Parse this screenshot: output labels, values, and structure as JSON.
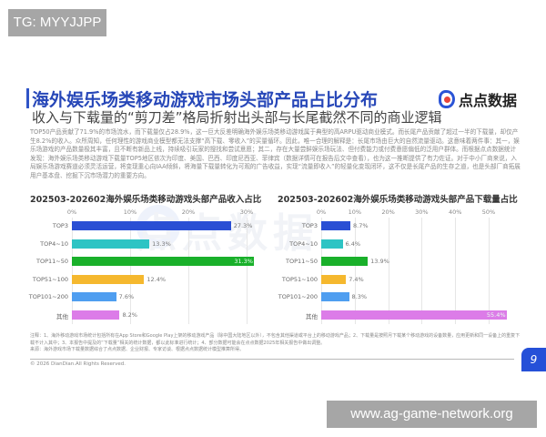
{
  "watermarks": {
    "top_left": "TG: MYYJJPP",
    "bottom_right": "www.ag-game-network.org",
    "background": "点点数据"
  },
  "header": {
    "title": "海外娱乐场类移动游戏市场头部产品占比分布",
    "subtitle": "收入与下载量的“剪刀差”格局折射出头部与长尾截然不同的商业逻辑",
    "logo_text": "点点数据",
    "logo_icon": "diandian-logo-icon"
  },
  "body_text": "TOP50产品贡献了71.9%的市场流水，而下载量仅占28.9%，这一巨大反差明确海外娱乐场类移动游戏属于典型的高ARPU驱动商业模式。而长尾产品贡献了超过一半的下载量，却仅产生8.2%的收入。众所周知，任何理性的游戏商业模型都无法支撑“高下载、零收入”的买量循环。因此，唯一合理的解释是：长尾市场由巨大的自然流量驱动。这意味着两件事：其一，娱乐场游戏的产品数量极其丰富，且不断有新品上线，持续吸引玩家的搜找和尝试意愿；其二，存在大量尝鲜娱乐场玩法、但付费能力或付费意愿偏低的泛用户群体。而根据点点数据统计发现：海外娱乐场类移动游戏下载量TOP5地区依次为印度、美国、巴西、印度尼西亚、菲律宾（数据详情可在报告后文中查看），也为这一推断提供了有力佐证。对于中小厂商来说，入局娱乐场游戏赛道必须灵活运营，将变现重心向IAA倾斜，将海量下载量转化为可观的广告收益，实现“流量即收入”的轻量化变现闭环，这不仅是长尾产品的生存之道，也是头部厂商拓展用户基本盘、挖掘下沉市场潜力的重要方向。",
  "chart_data": [
    {
      "type": "bar",
      "orientation": "horizontal",
      "title": "202503-202602海外娱乐场类移动游戏头部产品收入占比",
      "categories": [
        "TOP3",
        "TOP4~10",
        "TOP11~50",
        "TOP51~100",
        "TOP101~200",
        "其他"
      ],
      "values": [
        27.3,
        13.3,
        31.3,
        12.4,
        7.6,
        8.2
      ],
      "value_labels": [
        "27.3%",
        "13.3%",
        "31.3%",
        "12.4%",
        "7.6%",
        "8.2%"
      ],
      "colors": [
        "#2a4fd4",
        "#2ec4c4",
        "#19b02a",
        "#f5b82e",
        "#4f9ef0",
        "#dc7ce8"
      ],
      "xticks": [
        "0%",
        "10%",
        "20%",
        "30%"
      ],
      "xlim": [
        0,
        30
      ],
      "xlabel": "",
      "ylabel": "",
      "grid": true
    },
    {
      "type": "bar",
      "orientation": "horizontal",
      "title": "202503-202602海外娱乐场类移动游戏头部产品下载量占比",
      "categories": [
        "TOP3",
        "TOP4~10",
        "TOP11~50",
        "TOP51~100",
        "TOP101~200",
        "其他"
      ],
      "values": [
        8.7,
        6.4,
        13.9,
        7.4,
        8.3,
        55.4
      ],
      "value_labels": [
        "8.7%",
        "6.4%",
        "13.9%",
        "7.4%",
        "8.3%",
        "55.4%"
      ],
      "colors": [
        "#2a4fd4",
        "#2ec4c4",
        "#19b02a",
        "#f5b82e",
        "#4f9ef0",
        "#dc7ce8"
      ],
      "xticks": [
        "0%",
        "10%",
        "20%",
        "30%",
        "40%",
        "50%"
      ],
      "xlim": [
        0,
        50
      ],
      "xlabel": "",
      "ylabel": "",
      "grid": true
    }
  ],
  "footer": {
    "notes_line1": "注释：1、海外移动游戏市场统计包括所有在App Store和Google Play上架的移动游戏产品（除中国大陆地区以外），不包含其他渠道或平台上的移动游戏产品；2、下载量是按照月下载某个移动游戏的设备数量，应用更新和同一设备上的重复下载不计入其中；3、本报告中提及的“下载量”相关的统计数据，都以此标准进行统计；4、部分数据可能会在点点数据2025年相关报告中做出调整。",
    "notes_line2": "来源：海外游戏市场下载量数据综合了点点数据、企业财报、专家访谈、根据点点数据统计模型推算所得。",
    "copyright": "© 2026 DianDian.All Rights Reserved.",
    "page_number": "9"
  }
}
